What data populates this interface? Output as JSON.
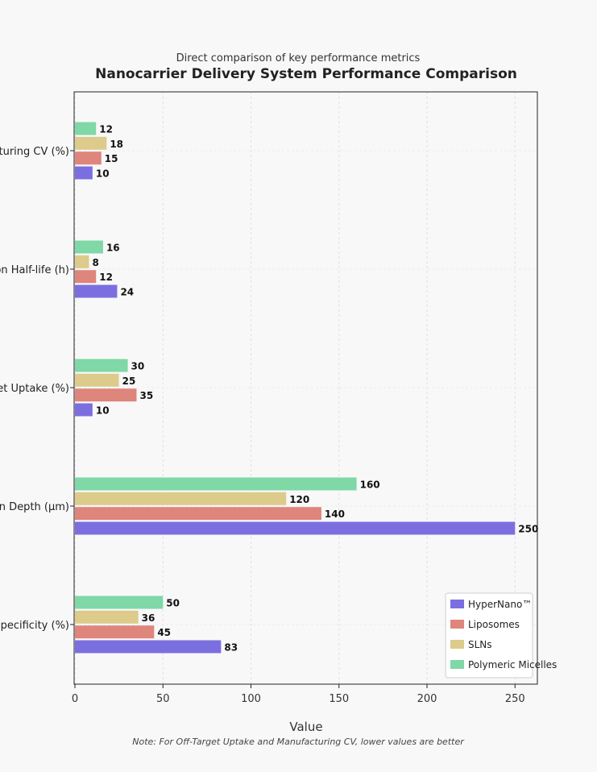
{
  "chart_data": {
    "type": "bar",
    "orientation": "horizontal",
    "title": "Nanocarrier Delivery System Performance Comparison",
    "subtitle": "Direct comparison of key performance metrics",
    "xlabel": "Value",
    "ylabel": "",
    "note": "Note: For Off-Target Uptake and Manufacturing CV, lower values are better",
    "xlim": [
      0,
      262
    ],
    "xticks": [
      0,
      50,
      100,
      150,
      200,
      250
    ],
    "grid": true,
    "legend_position": "bottom-right",
    "categories": [
      "Targeting Specificity (%)",
      "Penetration Depth (µm)",
      "Off-Target Uptake (%)",
      "Circulation Half-life (h)",
      "Manufacturing CV (%)"
    ],
    "series": [
      {
        "name": "HyperNano™",
        "color": "#7b6fe0",
        "values": [
          83,
          250,
          10,
          24,
          10
        ]
      },
      {
        "name": "Liposomes",
        "color": "#de857c",
        "values": [
          45,
          140,
          35,
          12,
          15
        ]
      },
      {
        "name": "SLNs",
        "color": "#dccb8a",
        "values": [
          36,
          120,
          25,
          8,
          18
        ]
      },
      {
        "name": "Polymeric Micelles",
        "color": "#7fd8a6",
        "values": [
          50,
          160,
          30,
          16,
          12
        ]
      }
    ]
  }
}
